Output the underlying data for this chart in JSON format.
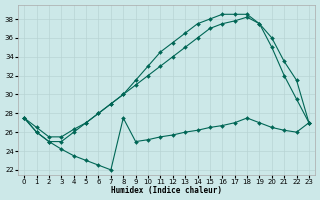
{
  "xlabel": "Humidex (Indice chaleur)",
  "background_color": "#cce8e8",
  "grid_color": "#b8d4d4",
  "line_color": "#006655",
  "xlim": [
    -0.5,
    23.5
  ],
  "ylim": [
    21.5,
    39.5
  ],
  "xticks": [
    0,
    1,
    2,
    3,
    4,
    5,
    6,
    7,
    8,
    9,
    10,
    11,
    12,
    13,
    14,
    15,
    16,
    17,
    18,
    19,
    20,
    21,
    22,
    23
  ],
  "yticks": [
    22,
    24,
    26,
    28,
    30,
    32,
    34,
    36,
    38
  ],
  "series": [
    {
      "x": [
        0,
        1,
        2,
        3,
        4,
        5,
        6,
        7,
        8,
        9,
        10,
        11,
        12,
        13,
        14,
        15,
        16,
        17,
        18,
        19,
        20,
        21,
        22,
        23
      ],
      "y": [
        27.5,
        26.0,
        25.0,
        25.0,
        26.0,
        27.0,
        28.0,
        29.0,
        30.0,
        31.0,
        32.0,
        33.0,
        34.0,
        35.0,
        36.0,
        37.0,
        37.5,
        37.8,
        38.2,
        37.5,
        36.0,
        33.5,
        31.5,
        27.0
      ]
    },
    {
      "x": [
        0,
        1,
        2,
        3,
        4,
        5,
        6,
        7,
        8,
        9,
        10,
        11,
        12,
        13,
        14,
        15,
        16,
        17,
        18,
        19,
        20,
        21,
        22,
        23
      ],
      "y": [
        27.5,
        26.5,
        25.5,
        25.5,
        26.3,
        27.0,
        28.0,
        29.0,
        30.0,
        31.5,
        33.0,
        34.5,
        35.5,
        36.5,
        37.5,
        38.0,
        38.5,
        38.5,
        38.5,
        37.5,
        35.0,
        32.0,
        29.5,
        27.0
      ]
    },
    {
      "x": [
        0,
        1,
        2,
        3,
        4,
        5,
        6,
        7,
        8,
        9,
        10,
        11,
        12,
        13,
        14,
        15,
        16,
        17,
        18,
        19,
        20,
        21,
        22,
        23
      ],
      "y": [
        27.5,
        26.0,
        25.0,
        24.2,
        23.5,
        23.0,
        22.5,
        22.0,
        27.5,
        25.0,
        25.2,
        25.5,
        25.7,
        26.0,
        26.2,
        26.5,
        26.7,
        27.0,
        27.5,
        27.0,
        26.5,
        26.2,
        26.0,
        27.0
      ]
    }
  ]
}
